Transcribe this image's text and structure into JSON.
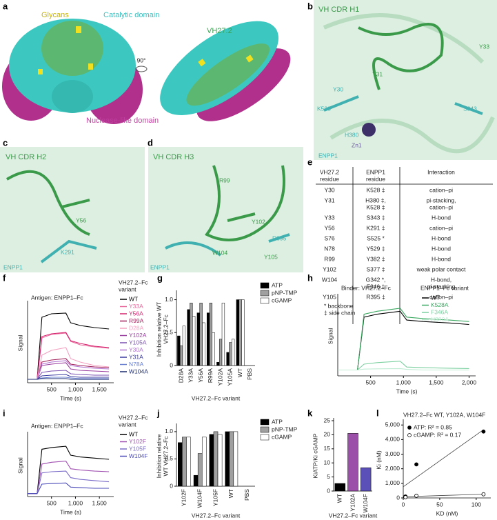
{
  "panel_letters": [
    "a",
    "b",
    "c",
    "d",
    "e",
    "f",
    "g",
    "h",
    "i",
    "j",
    "k",
    "l"
  ],
  "structures": {
    "a": {
      "glycans": "Glycans",
      "catalytic": "Catalytic domain",
      "vh": "VH27.2",
      "rotation": "90°",
      "nuclease": "Nuclease-like domain"
    },
    "b": {
      "title": "VH CDR H1",
      "labels": [
        "Y30",
        "Y33",
        "Y31",
        "K528",
        "S343",
        "H380",
        "Zn1",
        "ENPP1"
      ]
    },
    "c": {
      "title": "VH CDR H2",
      "labels": [
        "Y56",
        "K291",
        "ENPP1"
      ]
    },
    "d": {
      "title": "VH CDR H3",
      "labels": [
        "R99",
        "Y102",
        "R395",
        "W104",
        "Y105",
        "ENPP1"
      ]
    }
  },
  "table": {
    "header": [
      [
        "VH27.2",
        "residue"
      ],
      [
        "ENPP1",
        "residue"
      ],
      [
        "Interaction"
      ]
    ],
    "rows": [
      [
        [
          "Y30"
        ],
        [
          "K528 ‡"
        ],
        [
          "cation–pi"
        ]
      ],
      [
        [
          "Y31"
        ],
        [
          "H380 ‡,",
          "K528 ‡"
        ],
        [
          "pi-stacking,",
          "cation–pi"
        ]
      ],
      [
        [
          "Y33"
        ],
        [
          "S343 ‡"
        ],
        [
          "H-bond"
        ]
      ],
      [
        [
          "Y56"
        ],
        [
          "K291 ‡"
        ],
        [
          "cation–pi"
        ]
      ],
      [
        [
          "S76"
        ],
        [
          "S525 *"
        ],
        [
          "H-bond"
        ]
      ],
      [
        [
          "N78"
        ],
        [
          "Y529 ‡"
        ],
        [
          "H-bond"
        ]
      ],
      [
        [
          "R99"
        ],
        [
          "Y382 ‡"
        ],
        [
          "H-bond"
        ]
      ],
      [
        [
          "Y102"
        ],
        [
          "S377 ‡"
        ],
        [
          "weak polar contact"
        ]
      ],
      [
        [
          "W104"
        ],
        [
          "G342 *,",
          "F346 ‡"
        ],
        [
          "H-bond,",
          "pi-stacking"
        ]
      ],
      [
        [
          "Y105"
        ],
        [
          "R395 ‡"
        ],
        [
          "cation–pi"
        ]
      ]
    ],
    "footnotes": [
      "* backbone",
      "‡ side chain"
    ]
  },
  "chart_data": [
    {
      "type": "line",
      "title": "Antigen: ENPP1–Fc",
      "legend_title": [
        "VH27.2–Fc",
        "variant"
      ],
      "xlabel": "Time (s)",
      "ylabel": "Signal",
      "xlim": [
        0,
        1800
      ],
      "xticks": [
        500,
        {
          "value": 1000,
          "label": "1,000"
        },
        {
          "value": 1500,
          "label": "1,500"
        }
      ],
      "ylim": [
        -0.05,
        1.1
      ],
      "x": [
        0,
        200,
        300,
        500,
        800,
        900,
        1100,
        1400,
        1700
      ],
      "series": [
        {
          "name": "WT",
          "color": "#000000",
          "values": [
            0,
            0,
            0.9,
            0.95,
            0.96,
            0.82,
            0.78,
            0.75,
            0.73
          ]
        },
        {
          "name": "Y33A",
          "color": "#e86a9c",
          "values": [
            0,
            0,
            0.6,
            0.65,
            0.67,
            0.55,
            0.5,
            0.47,
            0.45
          ]
        },
        {
          "name": "Y56A",
          "color": "#d6246e",
          "values": [
            0,
            0,
            0.62,
            0.66,
            0.68,
            0.56,
            0.52,
            0.48,
            0.46
          ]
        },
        {
          "name": "R99A",
          "color": "#a0205a",
          "values": [
            0,
            0,
            0.25,
            0.28,
            0.3,
            0.22,
            0.2,
            0.18,
            0.17
          ]
        },
        {
          "name": "D28A",
          "color": "#f4a0c0",
          "values": [
            0,
            0,
            0.35,
            0.42,
            0.46,
            0.3,
            0.25,
            0.2,
            0.18
          ]
        },
        {
          "name": "Y102A",
          "color": "#9b3fa0",
          "values": [
            0,
            0,
            0.2,
            0.22,
            0.24,
            0.15,
            0.13,
            0.12,
            0.11
          ]
        },
        {
          "name": "Y105A",
          "color": "#7a50b0",
          "values": [
            0,
            0,
            0.1,
            0.12,
            0.13,
            0.08,
            0.07,
            0.06,
            0.06
          ]
        },
        {
          "name": "Y30A",
          "color": "#b070d0",
          "values": [
            0,
            0,
            0.22,
            0.25,
            0.27,
            0.2,
            0.18,
            0.16,
            0.15
          ]
        },
        {
          "name": "Y31A",
          "color": "#3a3aa0",
          "values": [
            0,
            0,
            0.05,
            0.06,
            0.07,
            0.04,
            0.03,
            0.03,
            0.03
          ]
        },
        {
          "name": "N78A",
          "color": "#6a80d0",
          "values": [
            0,
            0,
            0.02,
            0.03,
            0.03,
            0.02,
            0.01,
            0.01,
            0.01
          ]
        },
        {
          "name": "W104A",
          "color": "#1a2a70",
          "values": [
            0,
            0,
            0.01,
            0.01,
            0.01,
            0,
            0,
            0,
            0
          ]
        }
      ]
    },
    {
      "type": "bar",
      "ylabel": [
        "Inhibition relative WT",
        "VH27.2–Fc"
      ],
      "xlabel": "VH27.2–Fc variant",
      "categories": [
        "D28A",
        "Y33A",
        "Y56A",
        "R99A",
        "Y102A",
        "Y105A",
        "WT",
        "PBS"
      ],
      "ylim": [
        0,
        1.1
      ],
      "yticks": [
        0,
        0.5,
        {
          "value": 1,
          "label": "1.0"
        }
      ],
      "series": [
        {
          "name": "ATP",
          "color": "#000000",
          "values": [
            0.45,
            0.85,
            0.8,
            0.8,
            0.05,
            0.2,
            1,
            0
          ]
        },
        {
          "name": "pNP-TMP",
          "color": "#a0a0a0",
          "values": [
            0.3,
            0.95,
            0.95,
            0.95,
            0.4,
            0.35,
            1,
            0
          ]
        },
        {
          "name": "cGAMP",
          "color": "#ffffff",
          "values": [
            0.6,
            0.75,
            0.65,
            0.5,
            0.95,
            0.4,
            1,
            0
          ]
        }
      ]
    },
    {
      "type": "line",
      "title": "Binder: VH27.2–Fc",
      "legend_title": [
        "ENPP1–Fc variant"
      ],
      "xlabel": "Time (s)",
      "ylabel": "Signal",
      "xlim": [
        0,
        2100
      ],
      "xticks": [
        500,
        {
          "value": 1000,
          "label": "1,000"
        },
        {
          "value": 1500,
          "label": "1,500"
        },
        {
          "value": 2000,
          "label": "2,000"
        }
      ],
      "ylim": [
        -0.02,
        0.25
      ],
      "x": [
        0,
        300,
        400,
        600,
        950,
        1050,
        1300,
        1700,
        2000
      ],
      "series": [
        {
          "name": "WT",
          "color": "#000000",
          "values": [
            0,
            0,
            0.18,
            0.19,
            0.2,
            0.17,
            0.165,
            0.16,
            0.155
          ]
        },
        {
          "name": "K528A",
          "color": "#3aa860",
          "values": [
            0,
            0,
            0.19,
            0.2,
            0.21,
            0.18,
            0.175,
            0.17,
            0.165
          ]
        },
        {
          "name": "F346A",
          "color": "#7cd0a0",
          "values": [
            0,
            0,
            0.02,
            0.025,
            0.03,
            0.01,
            0.008,
            0.006,
            0.005
          ]
        },
        {
          "name": "H380A",
          "color": "#c0ecd4",
          "values": [
            0,
            0,
            0.003,
            0.004,
            0.005,
            0.002,
            0,
            0,
            0
          ]
        }
      ]
    },
    {
      "type": "line",
      "title": "Antigen: ENPP1–Fc",
      "legend_title": [
        "VH27.2–Fc",
        "variant"
      ],
      "xlabel": "Time (s)",
      "ylabel": "Signal",
      "xlim": [
        0,
        1800
      ],
      "xticks": [
        500,
        {
          "value": 1000,
          "label": "1,000"
        },
        {
          "value": 1500,
          "label": "1,500"
        }
      ],
      "ylim": [
        -0.05,
        1.0
      ],
      "x": [
        0,
        200,
        300,
        500,
        800,
        900,
        1100,
        1400,
        1700
      ],
      "series": [
        {
          "name": "WT",
          "color": "#000000",
          "values": [
            0,
            0,
            0.75,
            0.78,
            0.8,
            0.65,
            0.62,
            0.6,
            0.58
          ]
        },
        {
          "name": "Y102F",
          "color": "#a050b0",
          "values": [
            0,
            0,
            0.5,
            0.53,
            0.55,
            0.42,
            0.4,
            0.38,
            0.37
          ]
        },
        {
          "name": "Y105F",
          "color": "#7a6ac8",
          "values": [
            0,
            0,
            0.35,
            0.37,
            0.38,
            0.27,
            0.24,
            0.22,
            0.2
          ]
        },
        {
          "name": "W104F",
          "color": "#4a4ab8",
          "values": [
            0,
            0,
            0.16,
            0.17,
            0.18,
            0.11,
            0.1,
            0.09,
            0.09
          ]
        }
      ]
    },
    {
      "type": "bar",
      "ylabel": [
        "Inhibition relative",
        "WT VH27.2–Fc"
      ],
      "xlabel": "VH27.2–Fc variant",
      "categories": [
        "Y102F",
        "W104F",
        "Y105F",
        "WT",
        "PBS"
      ],
      "ylim": [
        0,
        1.1
      ],
      "yticks": [
        0,
        0.5,
        {
          "value": 1,
          "label": "1.0"
        }
      ],
      "series": [
        {
          "name": "ATP",
          "color": "#000000",
          "values": [
            0.8,
            0.2,
            0.95,
            1,
            0
          ]
        },
        {
          "name": "pNP-TMP",
          "color": "#a0a0a0",
          "values": [
            0.9,
            0.6,
            1,
            1,
            0
          ]
        },
        {
          "name": "cGAMP",
          "color": "#ffffff",
          "values": [
            0.9,
            0.9,
            0.95,
            1,
            0
          ]
        }
      ]
    },
    {
      "type": "bar",
      "ylabel": [
        "KiATP/Ki cGAMP"
      ],
      "xlabel": "VH27.2–Fc variant",
      "categories": [
        "WT",
        "Y102A",
        "W104F"
      ],
      "ylim": [
        0,
        25
      ],
      "yticks": [
        0,
        5,
        10,
        15,
        20,
        25
      ],
      "series": [
        {
          "colors": [
            "#000000",
            "#9b4fa8",
            "#5a50b8"
          ],
          "values": [
            2.7,
            20.5,
            8.3
          ]
        }
      ]
    },
    {
      "type": "scatter",
      "title": "VH27.2–Fc WT, Y102A, W104F",
      "xlabel": "KD (nM)",
      "ylabel": [
        "Ki (nM)"
      ],
      "xlim": [
        0,
        120
      ],
      "xticks": [
        0,
        50,
        100
      ],
      "ylim": [
        0,
        5200
      ],
      "yticks": [
        0,
        {
          "value": 1000,
          "label": "1,000"
        },
        {
          "value": 2000,
          "label": "2,000"
        },
        {
          "value": 3000,
          "label": "3,000"
        },
        {
          "value": 4000,
          "label": "4,000"
        },
        {
          "value": 5000,
          "label": "5,000"
        }
      ],
      "series": [
        {
          "name": "ATP: R² = 0.85",
          "marker": "filled",
          "color": "#000000",
          "x": [
            3,
            18,
            110
          ],
          "values": [
            100,
            2300,
            4550
          ]
        },
        {
          "name": "cGAMP: R² = 0.17",
          "marker": "open",
          "color": "#000000",
          "x": [
            3,
            18,
            110
          ],
          "values": [
            50,
            150,
            250
          ]
        }
      ]
    }
  ]
}
